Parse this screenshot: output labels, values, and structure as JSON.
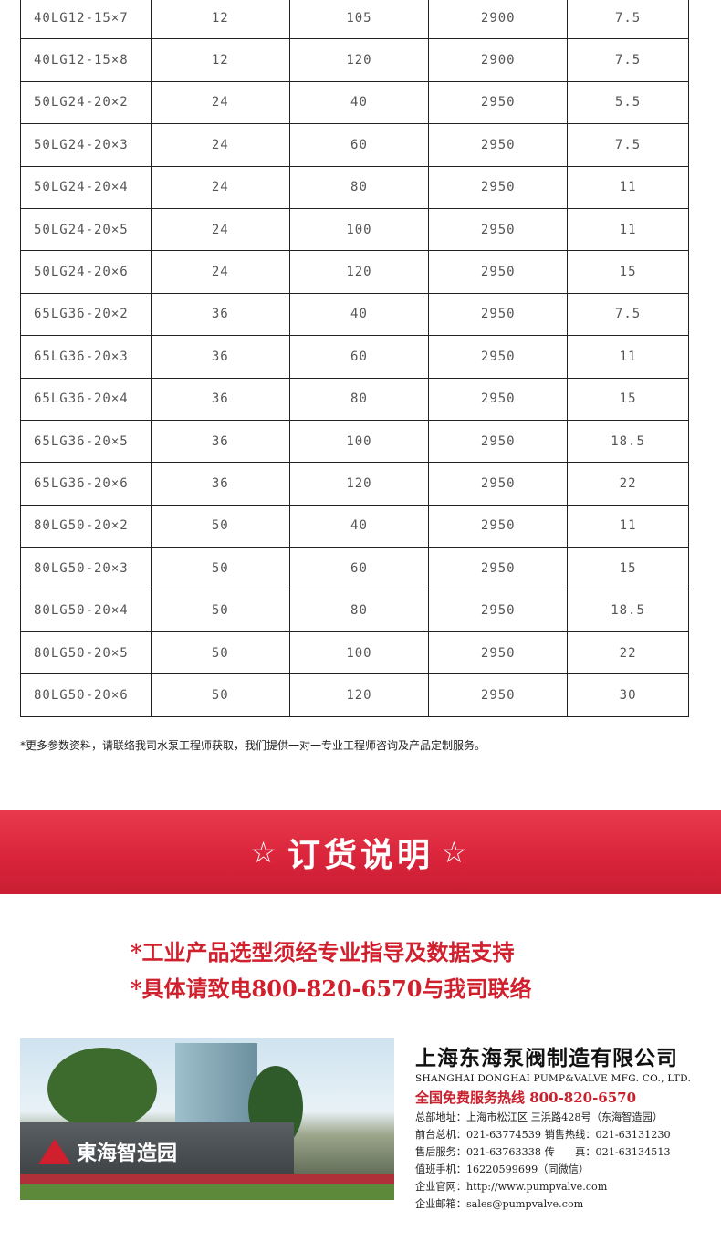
{
  "table": {
    "rows": [
      [
        "40LG12-15×7",
        "12",
        "105",
        "2900",
        "7.5"
      ],
      [
        "40LG12-15×8",
        "12",
        "120",
        "2900",
        "7.5"
      ],
      [
        "50LG24-20×2",
        "24",
        "40",
        "2950",
        "5.5"
      ],
      [
        "50LG24-20×3",
        "24",
        "60",
        "2950",
        "7.5"
      ],
      [
        "50LG24-20×4",
        "24",
        "80",
        "2950",
        "11"
      ],
      [
        "50LG24-20×5",
        "24",
        "100",
        "2950",
        "11"
      ],
      [
        "50LG24-20×6",
        "24",
        "120",
        "2950",
        "15"
      ],
      [
        "65LG36-20×2",
        "36",
        "40",
        "2950",
        "7.5"
      ],
      [
        "65LG36-20×3",
        "36",
        "60",
        "2950",
        "11"
      ],
      [
        "65LG36-20×4",
        "36",
        "80",
        "2950",
        "15"
      ],
      [
        "65LG36-20×5",
        "36",
        "100",
        "2950",
        "18.5"
      ],
      [
        "65LG36-20×6",
        "36",
        "120",
        "2950",
        "22"
      ],
      [
        "80LG50-20×2",
        "50",
        "40",
        "2950",
        "11"
      ],
      [
        "80LG50-20×3",
        "50",
        "60",
        "2950",
        "15"
      ],
      [
        "80LG50-20×4",
        "50",
        "80",
        "2950",
        "18.5"
      ],
      [
        "80LG50-20×5",
        "50",
        "100",
        "2950",
        "22"
      ],
      [
        "80LG50-20×6",
        "50",
        "120",
        "2950",
        "30"
      ]
    ]
  },
  "note": "*更多参数资料，请联络我司水泵工程师获取，我们提供一对一专业工程师咨询及产品定制服务。",
  "banner": {
    "star": "☆",
    "title": "订货说明",
    "color": "#d9233a"
  },
  "order_lines": [
    "*工业产品选型须经专业指导及数据支持",
    "*具体请致电800-820-6570与我司联络"
  ],
  "photo": {
    "sign_text": "東海智造园"
  },
  "company": {
    "name_cn": "上海东海泵阀制造有限公司",
    "name_en": "SHANGHAI DONGHAI PUMP&VALVE MFG. CO., LTD.",
    "hotline": "全国免费服务热线  800-820-6570",
    "lines": [
      "总部地址：上海市松江区 三浜路428号（东海智造园）",
      "前台总机：021-63774539   销售热线：021-63131230",
      "售后服务：021-63763338   传　　真：021-63134513",
      "值班手机：16220599699（同微信）",
      "企业官网：http://www.pumpvalve.com",
      "企业邮箱：sales@pumpvalve.com"
    ]
  }
}
